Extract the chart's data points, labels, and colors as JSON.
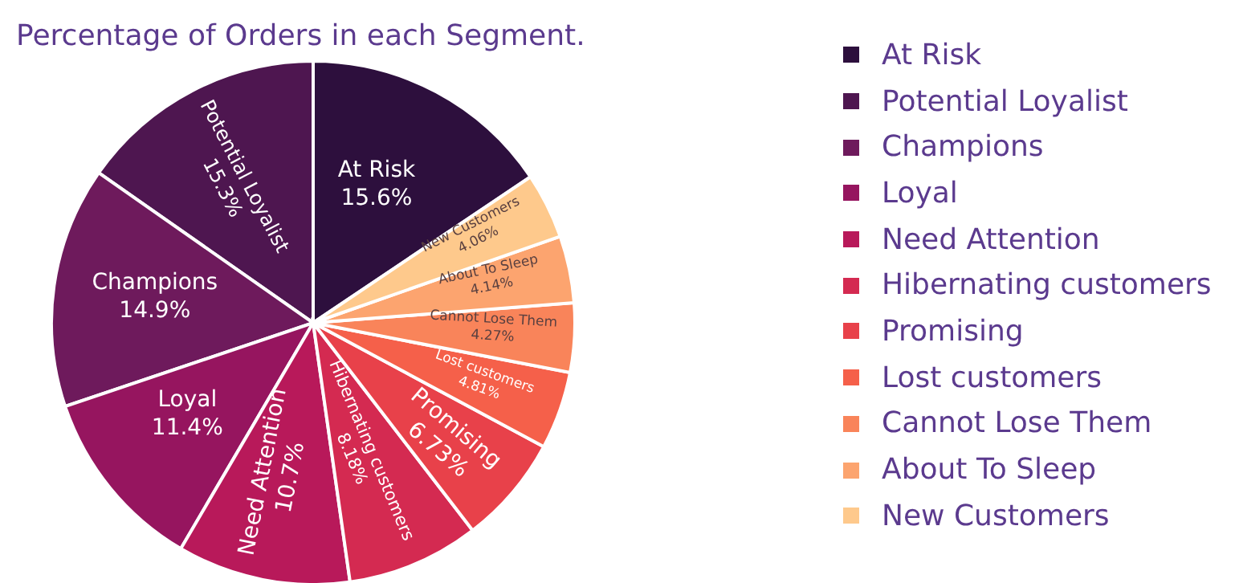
{
  "chart_data": {
    "type": "pie",
    "title": "Percentage of Orders in each Segment.",
    "categories": [
      "At Risk",
      "Potential Loyalist",
      "Champions",
      "Loyal",
      "Need Attention",
      "Hibernating customers",
      "Promising",
      "Lost customers",
      "Cannot Lose Them",
      "About To Sleep",
      "New Customers"
    ],
    "values": [
      15.6,
      15.3,
      14.9,
      11.4,
      10.7,
      8.18,
      6.73,
      4.81,
      4.27,
      4.14,
      4.06
    ],
    "colors": [
      "#2d0f3d",
      "#4e1650",
      "#6e1a5c",
      "#96155f",
      "#b8195a",
      "#d42a51",
      "#e8414a",
      "#f5604a",
      "#f9845a",
      "#fca46f",
      "#fec98c"
    ],
    "value_labels": [
      "15.6%",
      "15.3%",
      "14.9%",
      "11.4%",
      "10.7%",
      "8.18%",
      "6.73%",
      "4.81%",
      "4.27%",
      "4.14%",
      "4.06%"
    ],
    "legend": "right"
  }
}
